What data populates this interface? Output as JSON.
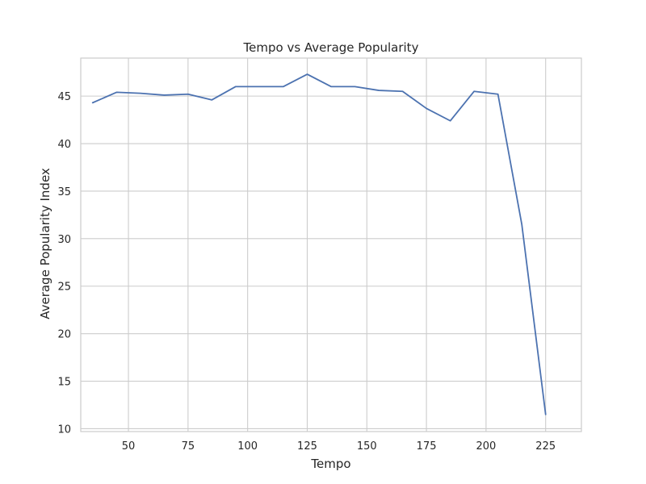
{
  "chart_data": {
    "type": "line",
    "title": "Tempo vs Average Popularity",
    "xlabel": "Tempo",
    "ylabel": "Average Popularity Index",
    "xlim": [
      30,
      240
    ],
    "ylim": [
      9.7,
      49
    ],
    "xticks": [
      50,
      75,
      100,
      125,
      150,
      175,
      200,
      225
    ],
    "yticks": [
      10,
      15,
      20,
      25,
      30,
      35,
      40,
      45
    ],
    "grid": true,
    "legend": "none",
    "series": [
      {
        "color": "#4c72b0",
        "x": [
          35,
          45,
          55,
          65,
          75,
          85,
          95,
          105,
          115,
          125,
          135,
          145,
          155,
          165,
          175,
          185,
          195,
          205,
          215,
          225
        ],
        "y": [
          44.3,
          45.4,
          45.3,
          45.1,
          45.2,
          44.6,
          46.0,
          46.0,
          46.0,
          47.3,
          46.0,
          46.0,
          45.6,
          45.5,
          43.7,
          42.4,
          45.5,
          45.2,
          31.5,
          11.5
        ]
      }
    ]
  }
}
